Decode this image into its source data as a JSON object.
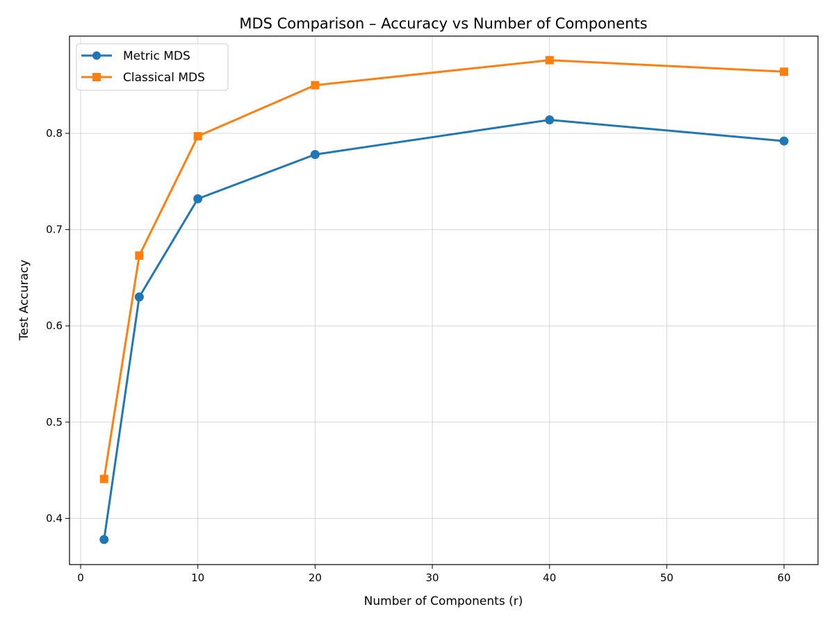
{
  "chart_data": {
    "type": "line",
    "title": "MDS Comparison – Accuracy vs Number of Components",
    "xlabel": "Number of Components (r)",
    "ylabel": "Test Accuracy",
    "x": [
      2,
      5,
      10,
      20,
      40,
      60
    ],
    "series": [
      {
        "name": "Metric MDS",
        "values": [
          0.378,
          0.63,
          0.732,
          0.778,
          0.814,
          0.792
        ],
        "color": "#1f77b4",
        "marker": "circle"
      },
      {
        "name": "Classical MDS",
        "values": [
          0.441,
          0.673,
          0.797,
          0.85,
          0.876,
          0.864
        ],
        "color": "#ff7f0e",
        "marker": "square"
      }
    ],
    "xlim": [
      -0.95,
      62.9
    ],
    "ylim": [
      0.352,
      0.901
    ],
    "xticks": [
      "0",
      "10",
      "20",
      "30",
      "40",
      "50",
      "60"
    ],
    "yticks": [
      "0.4",
      "0.5",
      "0.6",
      "0.7",
      "0.8"
    ],
    "grid": true,
    "legend_position": "top-left"
  }
}
